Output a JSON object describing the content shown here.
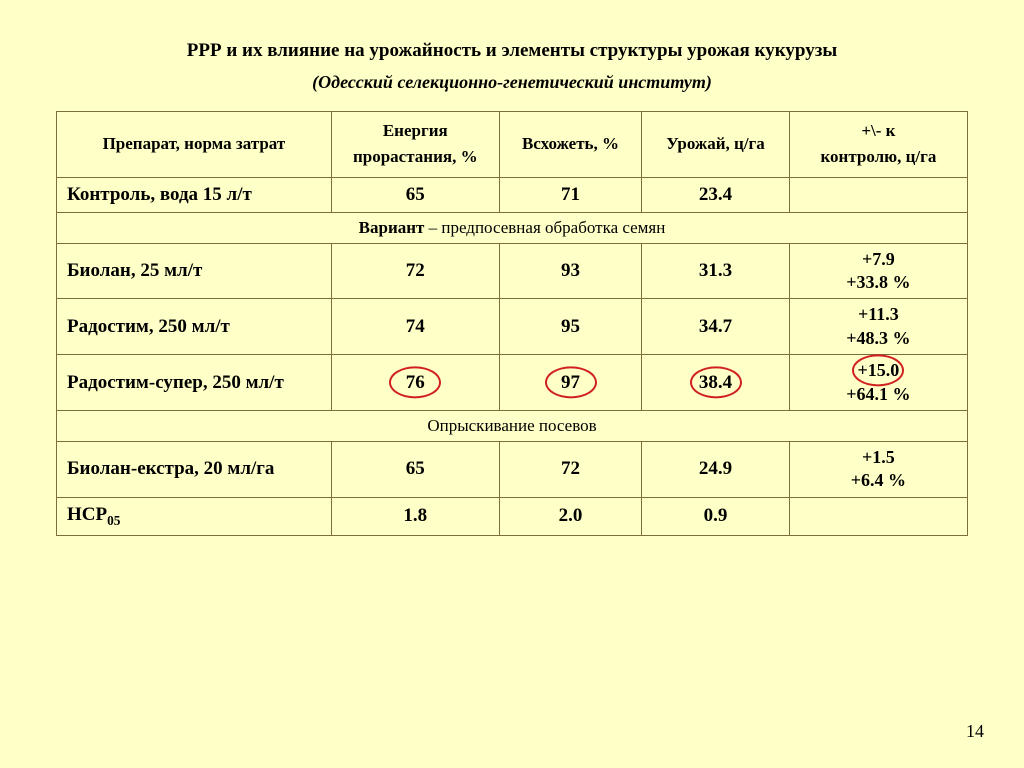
{
  "title": "РРР и их влияние на урожайность и элементы структуры урожая кукурузы",
  "subtitle": "(Одесский селекционно-генетический институт)",
  "headers": {
    "prep": "Препарат, норма затрат",
    "energy_l1": "Енергия",
    "energy_l2": "прорастания, %",
    "germ": "Всхожеть, %",
    "yield": "Урожай, ц/га",
    "delta_l1": "+\\- к",
    "delta_l2": "контролю, ц/га"
  },
  "section1_label": "Вариант",
  "section1_rest": " – предпосевная обработка семян",
  "section2": "Опрыскивание посевов",
  "rows": {
    "control": {
      "prep": "Контроль, вода 15 л/т",
      "e": "65",
      "v": "71",
      "u": "23.4",
      "d": ""
    },
    "biolan": {
      "prep": "Биолан, 25 мл/т",
      "e": "72",
      "v": "93",
      "u": "31.3",
      "d1": "+7.9",
      "d2": "+33.8 %"
    },
    "rado": {
      "prep": "Радостим, 250 мл/т",
      "e": "74",
      "v": "95",
      "u": "34.7",
      "d1": "+11.3",
      "d2": "+48.3 %"
    },
    "radosup": {
      "prep": "Радостим-супер, 250 мл/т",
      "e": "76",
      "v": "97",
      "u": "38.4",
      "d1": "+15.0",
      "d2": "+64.1 %"
    },
    "bioext": {
      "prep": "Биолан-екстра, 20 мл/га",
      "e": "65",
      "v": "72",
      "u": "24.9",
      "d1": "+1.5",
      "d2": "+6.4 %"
    },
    "hcp": {
      "prep_pre": "НСР",
      "prep_sub": "05",
      "e": "1.8",
      "v": "2.0",
      "u": "0.9",
      "d": ""
    }
  },
  "pagenum": "14",
  "colors": {
    "bg": "#ffffc8",
    "border": "#7a6f3d",
    "circle": "#d02020"
  }
}
